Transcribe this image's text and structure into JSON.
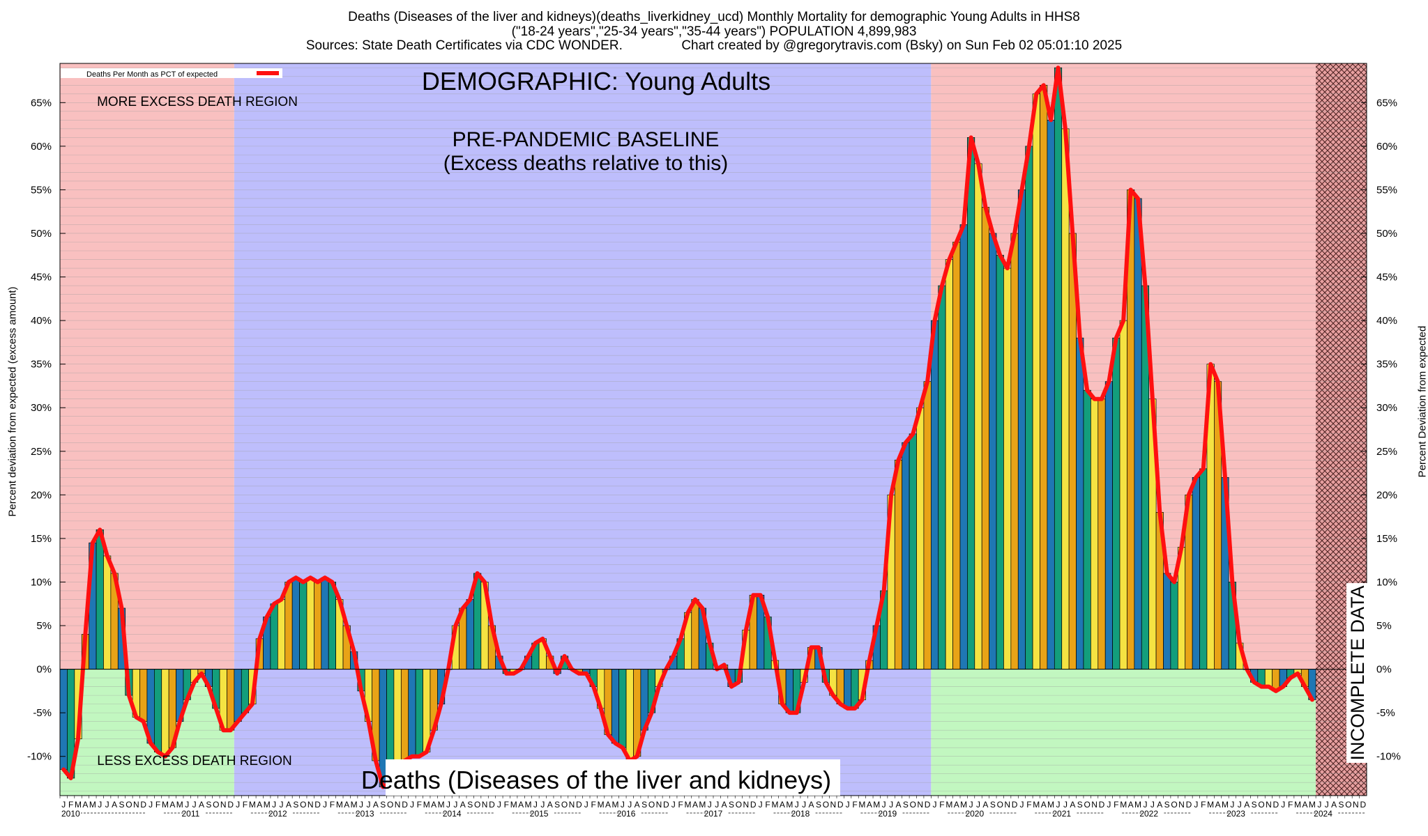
{
  "header": {
    "line1": "Deaths (Diseases of the liver and kidneys)(deaths_liverkidney_ucd) Monthly Mortality for demographic Young Adults in HHS8",
    "line2": "(\"18-24 years\",\"25-34 years\",\"35-44 years\") POPULATION 4,899,983",
    "line3": "Sources: State Death Certificates via CDC WONDER.                Chart created by @gregorytravis.com (Bsky) on Sun Feb 02 05:01:10 2025"
  },
  "labels": {
    "demographic": "DEMOGRAPHIC: Young Adults",
    "baseline1": "PRE-PANDEMIC BASELINE",
    "baseline2": "(Excess deaths relative to this)",
    "more_region": "MORE EXCESS DEATH REGION",
    "less_region": "LESS EXCESS DEATH REGION",
    "bottom_title": "Deaths (Diseases of the liver and kidneys)",
    "incomplete": "INCOMPLETE DATA",
    "legend": "Deaths Per Month as PCT of expected",
    "ylabel_left": "Percent deviation from expected (excess amount)",
    "ylabel_right": "Percent Deviation from expected"
  },
  "colors": {
    "excess_region": "#f9c0c0",
    "baseline_region": "#bebefc",
    "less_region": "#c2f7c0",
    "line": "#ff1010",
    "bar_palette": [
      "#1f77b4",
      "#139e7c",
      "#f5e342",
      "#e8a317"
    ]
  },
  "chart_data": {
    "type": "bar",
    "start": "2010-01",
    "ylim": [
      -14.5,
      69.5
    ],
    "y_ticks": [
      -10,
      -5,
      0,
      5,
      10,
      15,
      20,
      25,
      30,
      35,
      40,
      45,
      50,
      55,
      60,
      65
    ],
    "y_tick_suffix": "%",
    "month_letters": [
      "J",
      "F",
      "M",
      "A",
      "M",
      "J",
      "J",
      "A",
      "S",
      "O",
      "N",
      "D"
    ],
    "years": [
      "2010",
      "2011",
      "2012",
      "2013",
      "2014",
      "2015",
      "2016",
      "2017",
      "2018",
      "2019",
      "2020",
      "2021",
      "2022",
      "2023",
      "2024"
    ],
    "baseline_period": [
      "2012-01",
      "2019-12"
    ],
    "incomplete_from": "2024-06",
    "values": [
      -11.5,
      -12.5,
      -8,
      4,
      14.5,
      16,
      13,
      11,
      7,
      -3,
      -5.5,
      -6,
      -8.5,
      -9.5,
      -10,
      -9,
      -6,
      -3.5,
      -1.5,
      -0.5,
      -2,
      -4.5,
      -7,
      -7,
      -6,
      -5,
      -4,
      3.5,
      6,
      7.5,
      8,
      10,
      10.5,
      10,
      10.5,
      10,
      10.5,
      10,
      8,
      5,
      2,
      -2.5,
      -6,
      -10.5,
      -13.5,
      -13,
      -12,
      -10.5,
      -10,
      -10,
      -9.5,
      -7,
      -4,
      0,
      5,
      7,
      8,
      11,
      10,
      5,
      1.5,
      -0.5,
      -0.5,
      0,
      1.5,
      3,
      3.5,
      1.5,
      -0.5,
      1.5,
      0,
      -0.5,
      -0.5,
      -2,
      -4.5,
      -7.5,
      -8.5,
      -9,
      -10.5,
      -10,
      -7,
      -5,
      -2,
      0,
      1.5,
      3.5,
      6.5,
      8,
      7,
      3,
      0,
      0.5,
      -2,
      -1.5,
      4.5,
      8.5,
      8.5,
      6,
      1,
      -4,
      -5,
      -5,
      -1.5,
      2.5,
      2.5,
      -1.5,
      -3,
      -4,
      -4.5,
      -4.5,
      -3.5,
      1,
      5,
      9,
      20,
      24,
      26,
      27,
      30,
      33,
      40,
      44,
      47,
      49,
      51,
      61,
      58,
      53,
      50,
      47.5,
      46,
      50,
      55,
      60,
      66,
      67,
      63,
      69,
      62,
      50,
      38,
      32,
      31,
      31,
      33,
      38,
      40,
      55,
      54,
      44,
      31,
      18,
      11,
      10,
      14,
      20,
      22,
      23,
      35,
      33,
      22,
      10,
      3,
      0,
      -1.5,
      -2,
      -2,
      -2.5,
      -2,
      -1,
      -0.5,
      -2,
      -3.5
    ]
  }
}
